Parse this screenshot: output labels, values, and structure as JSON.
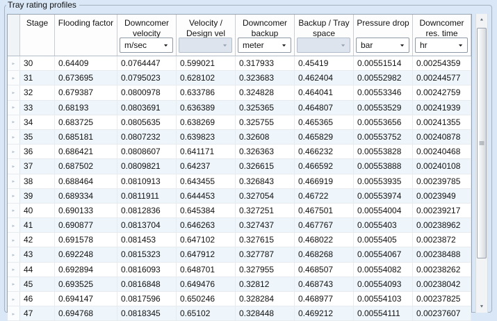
{
  "group": {
    "title": "Tray rating profiles"
  },
  "table": {
    "row_header_icon": "▸",
    "columns": [
      {
        "id": "stage",
        "label": "Stage",
        "width": 50,
        "unit": null
      },
      {
        "id": "flooding_factor",
        "label": "Flooding factor",
        "width": 90,
        "unit": null
      },
      {
        "id": "downcomer_velocity",
        "label": "Downcomer\nvelocity",
        "width": 85,
        "unit": {
          "value": "m/sec",
          "enabled": true
        }
      },
      {
        "id": "velocity_design",
        "label": "Velocity /\nDesign vel",
        "width": 85,
        "unit": {
          "value": "",
          "enabled": false
        }
      },
      {
        "id": "downcomer_backup",
        "label": "Downcomer\nbackup",
        "width": 85,
        "unit": {
          "value": "meter",
          "enabled": true
        }
      },
      {
        "id": "backup_tray_space",
        "label": "Backup / Tray\nspace",
        "width": 85,
        "unit": {
          "value": "",
          "enabled": false
        }
      },
      {
        "id": "pressure_drop",
        "label": "Pressure drop",
        "width": 85,
        "unit": {
          "value": "bar",
          "enabled": true
        }
      },
      {
        "id": "downcomer_res_time",
        "label": "Downcomer\nres. time",
        "width": 84,
        "unit": {
          "value": "hr",
          "enabled": true
        }
      }
    ],
    "rows": [
      [
        "30",
        "0.64409",
        "0.0764447",
        "0.599021",
        "0.317933",
        "0.45419",
        "0.00551514",
        "0.00254359"
      ],
      [
        "31",
        "0.673695",
        "0.0795023",
        "0.628102",
        "0.323683",
        "0.462404",
        "0.00552982",
        "0.00244577"
      ],
      [
        "32",
        "0.679387",
        "0.0800978",
        "0.633786",
        "0.324828",
        "0.464041",
        "0.00553346",
        "0.00242759"
      ],
      [
        "33",
        "0.68193",
        "0.0803691",
        "0.636389",
        "0.325365",
        "0.464807",
        "0.00553529",
        "0.00241939"
      ],
      [
        "34",
        "0.683725",
        "0.0805635",
        "0.638269",
        "0.325755",
        "0.465365",
        "0.00553656",
        "0.00241355"
      ],
      [
        "35",
        "0.685181",
        "0.0807232",
        "0.639823",
        "0.32608",
        "0.465829",
        "0.00553752",
        "0.00240878"
      ],
      [
        "36",
        "0.686421",
        "0.0808607",
        "0.641171",
        "0.326363",
        "0.466232",
        "0.00553828",
        "0.00240468"
      ],
      [
        "37",
        "0.687502",
        "0.0809821",
        "0.64237",
        "0.326615",
        "0.466592",
        "0.00553888",
        "0.00240108"
      ],
      [
        "38",
        "0.688464",
        "0.0810913",
        "0.643455",
        "0.326843",
        "0.466919",
        "0.00553935",
        "0.00239785"
      ],
      [
        "39",
        "0.689334",
        "0.0811911",
        "0.644453",
        "0.327054",
        "0.46722",
        "0.00553974",
        "0.0023949"
      ],
      [
        "40",
        "0.690133",
        "0.0812836",
        "0.645384",
        "0.327251",
        "0.467501",
        "0.00554004",
        "0.00239217"
      ],
      [
        "41",
        "0.690877",
        "0.0813704",
        "0.646263",
        "0.327437",
        "0.467767",
        "0.0055403",
        "0.00238962"
      ],
      [
        "42",
        "0.691578",
        "0.081453",
        "0.647102",
        "0.327615",
        "0.468022",
        "0.0055405",
        "0.0023872"
      ],
      [
        "43",
        "0.692248",
        "0.0815323",
        "0.647912",
        "0.327787",
        "0.468268",
        "0.00554067",
        "0.00238488"
      ],
      [
        "44",
        "0.692894",
        "0.0816093",
        "0.648701",
        "0.327955",
        "0.468507",
        "0.00554082",
        "0.00238262"
      ],
      [
        "45",
        "0.693525",
        "0.0816848",
        "0.649476",
        "0.32812",
        "0.468743",
        "0.00554093",
        "0.00238042"
      ],
      [
        "46",
        "0.694147",
        "0.0817596",
        "0.650246",
        "0.328284",
        "0.468977",
        "0.00554103",
        "0.00237825"
      ],
      [
        "47",
        "0.694768",
        "0.0818345",
        "0.65102",
        "0.328448",
        "0.469212",
        "0.00554111",
        "0.00237607"
      ]
    ]
  },
  "scrollbar": {
    "up_icon": "▲",
    "down_icon": "▼"
  }
}
